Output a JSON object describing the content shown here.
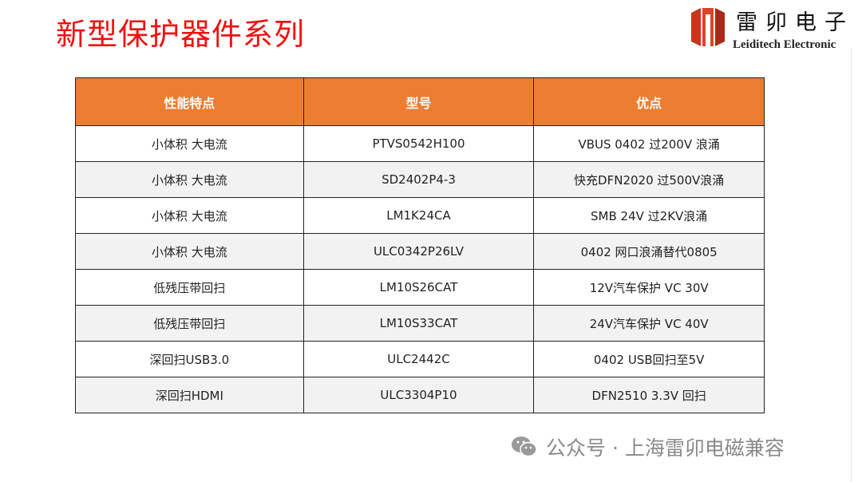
{
  "title": "新型保护器件系列",
  "logo": {
    "cn": "雷卯电子",
    "en": "Leiditech Electronic",
    "brand_color": "#c8361b"
  },
  "table": {
    "header_color": "#ed7d31",
    "headers": [
      "性能特点",
      "型号",
      "优点"
    ],
    "rows": [
      [
        "小体积 大电流",
        "PTVS0542H100",
        "VBUS 0402 过200V 浪涌"
      ],
      [
        "小体积 大电流",
        "SD2402P4-3",
        "快充DFN2020 过500V浪涌"
      ],
      [
        "小体积 大电流",
        "LM1K24CA",
        "SMB 24V 过2KV浪涌"
      ],
      [
        "小体积 大电流",
        "ULC0342P26LV",
        "0402 网口浪涌替代0805"
      ],
      [
        "低残压带回扫",
        "LM10S26CAT",
        "12V汽车保护 VC 30V"
      ],
      [
        "低残压带回扫",
        "LM10S33CAT",
        "24V汽车保护 VC 40V"
      ],
      [
        "深回扫USB3.0",
        "ULC2442C",
        "0402 USB回扫至5V"
      ],
      [
        "深回扫HDMI",
        "ULC3304P10",
        "DFN2510 3.3V 回扫"
      ]
    ]
  },
  "watermark": {
    "icon": "wechat-icon",
    "text": "公众号 · 上海雷卯电磁兼容"
  }
}
